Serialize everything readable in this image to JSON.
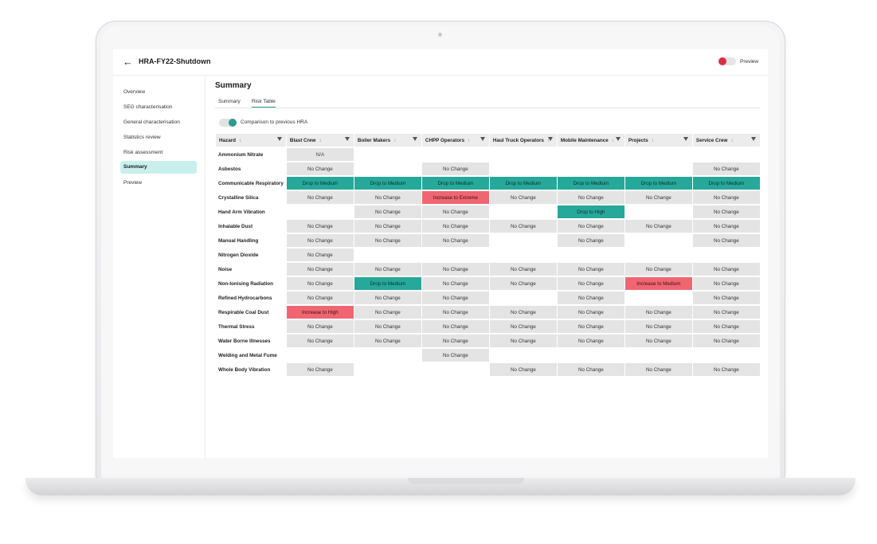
{
  "header": {
    "title": "HRA-FY22-Shutdown",
    "preview_label": "Preview"
  },
  "sidebar": {
    "items": [
      {
        "label": "Overview",
        "active": false
      },
      {
        "label": "SEG characterisation",
        "active": false
      },
      {
        "label": "General characterisation",
        "active": false
      },
      {
        "label": "Statistics review",
        "active": false
      },
      {
        "label": "Risk assessment",
        "active": false
      },
      {
        "label": "Summary",
        "active": true
      },
      {
        "label": "Preview",
        "active": false
      }
    ]
  },
  "main": {
    "title": "Summary",
    "tabs": [
      {
        "label": "Summary",
        "active": false
      },
      {
        "label": "Risk Table",
        "active": true
      }
    ],
    "comparison_toggle_label": "Comparison to previous HRA",
    "comparison_toggle_on": true
  },
  "colors": {
    "accent": "#2a9d8f",
    "drop": "#26a89a",
    "increase": "#ef6672",
    "no_change": "#e4e4e4",
    "preview_dot": "#d92f45"
  },
  "risk_table": {
    "columns": [
      "Hazard",
      "Blast Crew",
      "Boiler Makers",
      "CHPP Operators",
      "Haul Truck Operators",
      "Mobile Maintenance",
      "Projects",
      "Service Crew"
    ],
    "rows": [
      {
        "hazard": "Ammonium Nitrate",
        "cells": [
          "N/A",
          "",
          "",
          "",
          "",
          "",
          ""
        ]
      },
      {
        "hazard": "Asbestos",
        "cells": [
          "No Change",
          "",
          "No Change",
          "",
          "",
          "",
          "No Change"
        ]
      },
      {
        "hazard": "Communicable Respiratory",
        "cells": [
          "Drop to Medium",
          "Drop to Medium",
          "Drop to Medium",
          "Drop to Medium",
          "Drop to Medium",
          "Drop to Medium",
          "Drop to Medium"
        ]
      },
      {
        "hazard": "Crystalline Silica",
        "cells": [
          "No Change",
          "No Change",
          "Increase to Extreme",
          "No Change",
          "No Change",
          "No Change",
          "No Change"
        ]
      },
      {
        "hazard": "Hand Arm Vibration",
        "cells": [
          "",
          "No Change",
          "No Change",
          "",
          "Drop to High",
          "",
          "No Change"
        ]
      },
      {
        "hazard": "Inhalable Dust",
        "cells": [
          "No Change",
          "No Change",
          "No Change",
          "No Change",
          "No Change",
          "No Change",
          "No Change"
        ]
      },
      {
        "hazard": "Manual Handling",
        "cells": [
          "No Change",
          "No Change",
          "No Change",
          "",
          "No Change",
          "",
          "No Change"
        ]
      },
      {
        "hazard": "Nitrogen Dioxide",
        "cells": [
          "No Change",
          "",
          "",
          "",
          "",
          "",
          ""
        ]
      },
      {
        "hazard": "Noise",
        "cells": [
          "No Change",
          "No Change",
          "No Change",
          "No Change",
          "No Change",
          "No Change",
          "No Change"
        ]
      },
      {
        "hazard": "Non-Ionising Radiation",
        "cells": [
          "No Change",
          "Drop to Medium",
          "No Change",
          "No Change",
          "No Change",
          "Increase to Medium",
          "No Change"
        ]
      },
      {
        "hazard": "Refined Hydrocarbons",
        "cells": [
          "No Change",
          "No Change",
          "No Change",
          "",
          "No Change",
          "",
          "No Change"
        ]
      },
      {
        "hazard": "Respirable Coal Dust",
        "cells": [
          "Increase to High",
          "No Change",
          "No Change",
          "No Change",
          "No Change",
          "No Change",
          "No Change"
        ]
      },
      {
        "hazard": "Thermal Stress",
        "cells": [
          "No Change",
          "No Change",
          "No Change",
          "No Change",
          "No Change",
          "No Change",
          "No Change"
        ]
      },
      {
        "hazard": "Water Borne Illnesses",
        "cells": [
          "No Change",
          "No Change",
          "No Change",
          "No Change",
          "No Change",
          "No Change",
          "No Change"
        ]
      },
      {
        "hazard": "Welding and Metal Fume",
        "cells": [
          "",
          "",
          "No Change",
          "",
          "",
          "",
          ""
        ]
      },
      {
        "hazard": "Whole Body Vibration",
        "cells": [
          "No Change",
          "",
          "",
          "No Change",
          "No Change",
          "No Change",
          "No Change"
        ]
      }
    ]
  }
}
